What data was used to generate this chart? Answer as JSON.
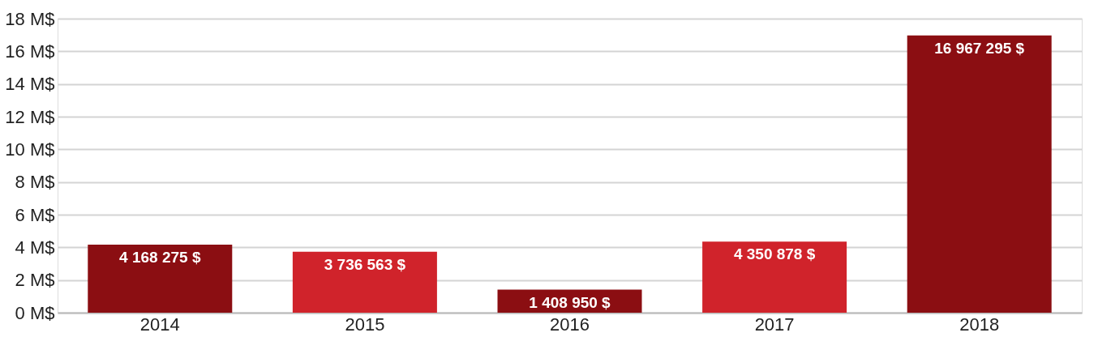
{
  "chart_data": {
    "type": "bar",
    "categories": [
      "2014",
      "2015",
      "2016",
      "2017",
      "2018"
    ],
    "values": [
      4168275,
      3736563,
      1408950,
      4350878,
      16967295
    ],
    "colors": [
      "#8b0e12",
      "#d0232b",
      "#8b0e12",
      "#d0232b",
      "#8b0e12"
    ],
    "value_labels": [
      "4 168 275 $",
      "3 736 563 $",
      "1 408 950 $",
      "4 350 878 $",
      "16 967 295 $"
    ],
    "ylim": [
      0,
      18000000
    ],
    "yticks": [
      {
        "value": 0,
        "label": "0 M$"
      },
      {
        "value": 2000000,
        "label": "2 M$"
      },
      {
        "value": 4000000,
        "label": "4 M$"
      },
      {
        "value": 6000000,
        "label": "6 M$"
      },
      {
        "value": 8000000,
        "label": "8 M$"
      },
      {
        "value": 10000000,
        "label": "10 M$"
      },
      {
        "value": 12000000,
        "label": "12 M$"
      },
      {
        "value": 14000000,
        "label": "14 M$"
      },
      {
        "value": 16000000,
        "label": "16 M$"
      },
      {
        "value": 18000000,
        "label": "18 M$"
      }
    ],
    "grid": "y"
  }
}
